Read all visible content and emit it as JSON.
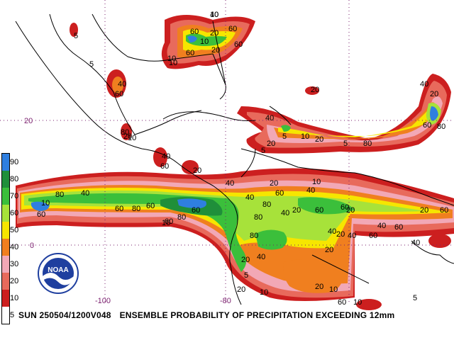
{
  "caption": {
    "date_code": "SUN 250504/1200V048",
    "title": "ENSEMBLE PROBABILITY OF PRECIPITATION EXCEEDING 12mm"
  },
  "grid_labels": {
    "lat_20": "20",
    "lat_0": "0",
    "lon_minus100": "-100",
    "lon_minus80": "-80"
  },
  "legend": [
    {
      "label": "5",
      "color": "#ffffff"
    },
    {
      "label": "10",
      "color": "#cc1f1f"
    },
    {
      "label": "20",
      "color": "#e86a5c"
    },
    {
      "label": "30",
      "color": "#f2a8b6"
    },
    {
      "label": "40",
      "color": "#f07f1f"
    },
    {
      "label": "50",
      "color": "#f6e600"
    },
    {
      "label": "60",
      "color": "#a7e23a"
    },
    {
      "label": "70",
      "color": "#3bbf3b"
    },
    {
      "label": "80",
      "color": "#1f8f3a"
    },
    {
      "label": "90",
      "color": "#2f7fe0"
    }
  ],
  "logo": {
    "text": "NOAA",
    "icon": "noaa-logo-icon"
  },
  "contour_labels": [
    "40",
    "60",
    "60",
    "20",
    "10",
    "60",
    "5",
    "5",
    "60",
    "10",
    "10",
    "20",
    "40",
    "60",
    "80",
    "20",
    "10",
    "40",
    "60",
    "20",
    "10",
    "60",
    "80",
    "40",
    "60",
    "80",
    "60",
    "60",
    "80",
    "60",
    "40",
    "80",
    "80",
    "80",
    "40",
    "20",
    "5",
    "20",
    "10",
    "60",
    "40",
    "20",
    "40",
    "60",
    "40",
    "60",
    "20",
    "20",
    "40",
    "60",
    "40",
    "60",
    "20",
    "60",
    "20",
    "10",
    "60",
    "40",
    "20",
    "10",
    "20",
    "20",
    "5",
    "5",
    "10",
    "20",
    "5",
    "80",
    "60",
    "80",
    "40",
    "20",
    "40",
    "10",
    "40",
    "20",
    "5",
    "10",
    "10"
  ],
  "colors": {
    "red": "#cc1f1f",
    "salmon": "#e86a5c",
    "pink": "#f2a8b6",
    "orange": "#f07f1f",
    "yellow": "#f6e600",
    "lightgreen": "#a7e23a",
    "green": "#3bbf3b",
    "darkgreen": "#1f8f3a",
    "blue": "#2f7fe0",
    "grid": "#7a1f6e"
  }
}
